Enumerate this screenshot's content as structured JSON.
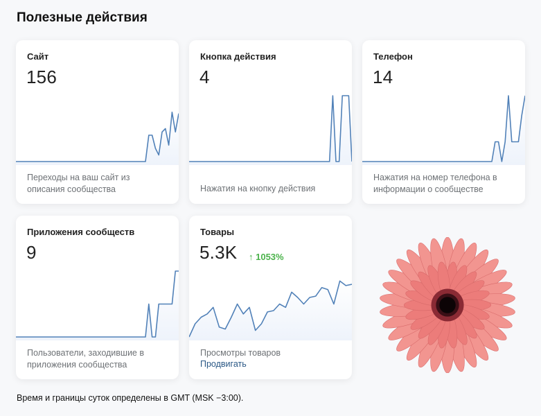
{
  "page": {
    "title": "Полезные действия",
    "footer": "Время и границы суток определены в GMT (MSK −3:00)."
  },
  "cards": [
    {
      "title": "Сайт",
      "value": "156",
      "desc": "Переходы на ваш сайт из описания сообщества",
      "series": [
        0,
        0,
        0,
        0,
        0,
        0,
        0,
        0,
        0,
        0,
        0,
        0,
        0,
        0,
        0,
        0,
        0,
        0,
        0,
        0,
        0,
        0,
        0,
        0,
        0,
        0,
        0,
        0,
        0,
        0,
        0,
        0,
        0,
        0,
        0,
        0,
        0,
        0,
        0,
        0,
        0.4,
        0.4,
        0.2,
        0.1,
        0.45,
        0.5,
        0.25,
        0.75,
        0.45,
        0.73
      ]
    },
    {
      "title": "Кнопка действия",
      "value": "4",
      "desc": "Нажатия на кнопку действия",
      "series": [
        0,
        0,
        0,
        0,
        0,
        0,
        0,
        0,
        0,
        0,
        0,
        0,
        0,
        0,
        0,
        0,
        0,
        0,
        0,
        0,
        0,
        0,
        0,
        0,
        0,
        0,
        0,
        0,
        0,
        0,
        0,
        0,
        0,
        0,
        0,
        0,
        0,
        0,
        0,
        0,
        0,
        0,
        0,
        0,
        0,
        1,
        0,
        0,
        1,
        1,
        1,
        0
      ]
    },
    {
      "title": "Телефон",
      "value": "14",
      "desc": "Нажатия на номер телефона в информации о сообществе",
      "series": [
        0,
        0,
        0,
        0,
        0,
        0,
        0,
        0,
        0,
        0,
        0,
        0,
        0,
        0,
        0,
        0,
        0,
        0,
        0,
        0,
        0,
        0,
        0,
        0,
        0,
        0,
        0,
        0,
        0,
        0,
        0,
        0,
        0,
        0,
        0,
        0,
        0,
        0,
        0,
        0,
        0.3,
        0.3,
        0,
        0.3,
        1,
        0.3,
        0.3,
        0.3,
        0.7,
        1
      ]
    },
    {
      "title": "Приложения сообществ",
      "value": "9",
      "desc": "Пользователи, заходившие в приложения сообщества",
      "series": [
        0,
        0,
        0,
        0,
        0,
        0,
        0,
        0,
        0,
        0,
        0,
        0,
        0,
        0,
        0,
        0,
        0,
        0,
        0,
        0,
        0,
        0,
        0,
        0,
        0,
        0,
        0,
        0,
        0,
        0,
        0,
        0,
        0,
        0,
        0,
        0,
        0,
        0,
        0,
        0,
        0.5,
        0,
        0,
        0.5,
        0.5,
        0.5,
        0.5,
        0.5,
        1,
        1
      ]
    },
    {
      "title": "Товары",
      "value": "5.3K",
      "growth": "↑ 1053%",
      "desc": "Просмотры товаров",
      "link": "Продвигать",
      "series": [
        0,
        0.2,
        0.3,
        0.35,
        0.45,
        0.15,
        0.12,
        0.3,
        0.5,
        0.35,
        0.45,
        0.1,
        0.2,
        0.38,
        0.4,
        0.5,
        0.45,
        0.68,
        0.6,
        0.5,
        0.6,
        0.62,
        0.75,
        0.72,
        0.5,
        0.85,
        0.78,
        0.8
      ]
    }
  ],
  "colors": {
    "line": "#5181b8",
    "fill_top": "#eef3fb",
    "growth": "#4bb34b",
    "link": "#2a5885"
  }
}
